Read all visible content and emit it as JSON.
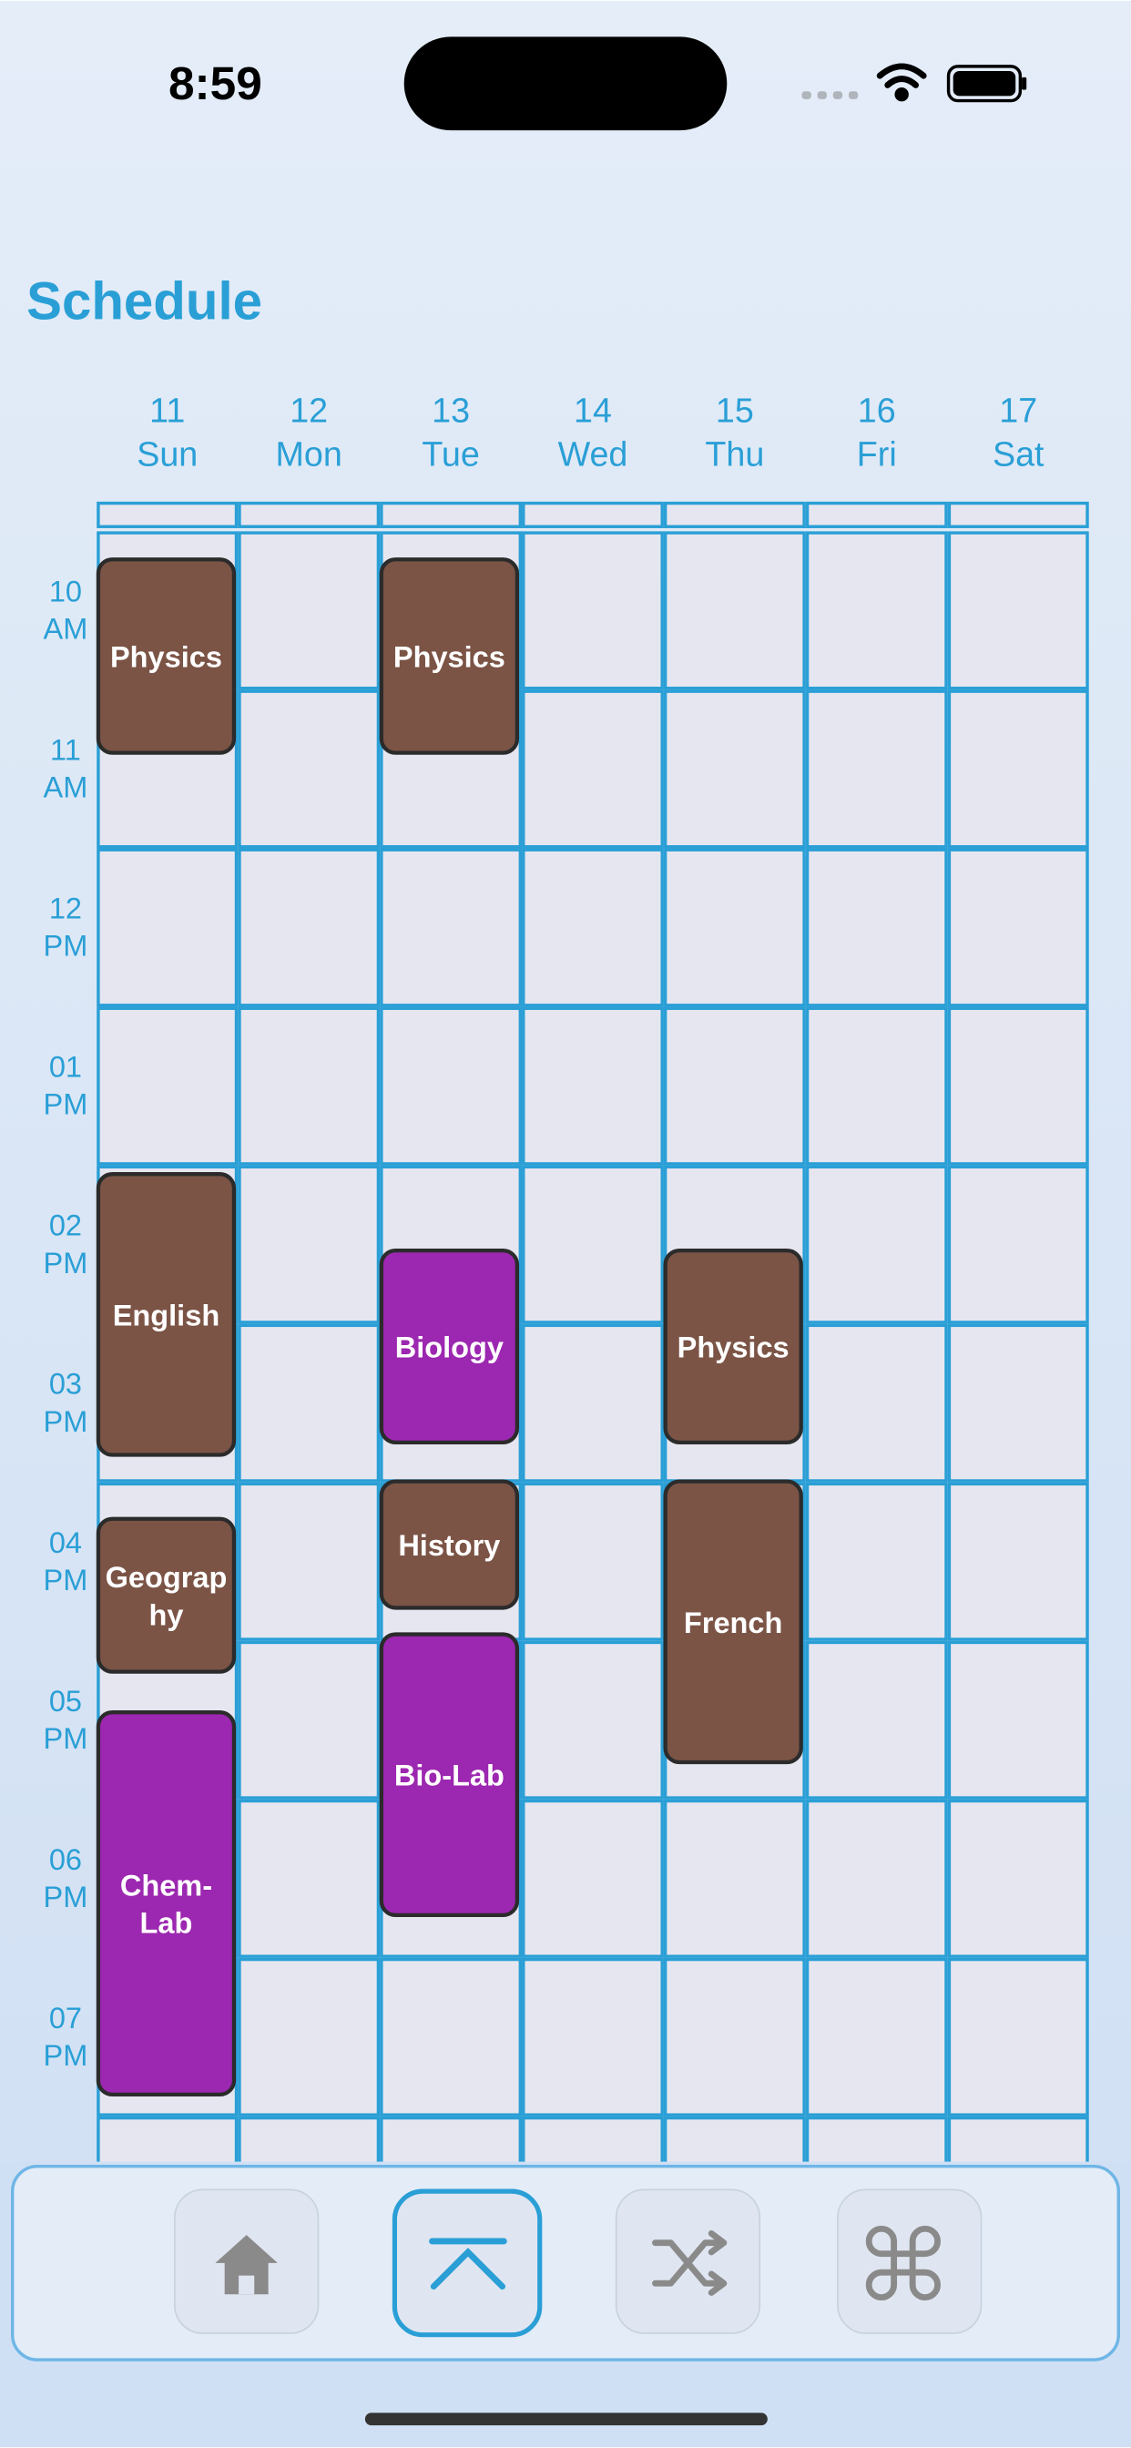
{
  "status_bar": {
    "time": "8:59"
  },
  "header": {
    "title": "Schedule"
  },
  "days": [
    {
      "date": "11",
      "name": "Sun"
    },
    {
      "date": "12",
      "name": "Mon"
    },
    {
      "date": "13",
      "name": "Tue"
    },
    {
      "date": "14",
      "name": "Wed"
    },
    {
      "date": "15",
      "name": "Thu"
    },
    {
      "date": "16",
      "name": "Fri"
    },
    {
      "date": "17",
      "name": "Sat"
    }
  ],
  "hours": [
    {
      "hour": "10",
      "period": "AM"
    },
    {
      "hour": "11",
      "period": "AM"
    },
    {
      "hour": "12",
      "period": "PM"
    },
    {
      "hour": "01",
      "period": "PM"
    },
    {
      "hour": "02",
      "period": "PM"
    },
    {
      "hour": "03",
      "period": "PM"
    },
    {
      "hour": "04",
      "period": "PM"
    },
    {
      "hour": "05",
      "period": "PM"
    },
    {
      "hour": "06",
      "period": "PM"
    },
    {
      "hour": "07",
      "period": "PM"
    }
  ],
  "events": [
    {
      "lines": [
        "Physics"
      ],
      "color": "#7b5446"
    },
    {
      "lines": [
        "Physics"
      ],
      "color": "#7b5446"
    },
    {
      "lines": [
        "English"
      ],
      "color": "#7b5446"
    },
    {
      "lines": [
        "Biology"
      ],
      "color": "#9c27b0"
    },
    {
      "lines": [
        "Physics"
      ],
      "color": "#7b5446"
    },
    {
      "lines": [
        "History"
      ],
      "color": "#7b5446"
    },
    {
      "lines": [
        "French"
      ],
      "color": "#7b5446"
    },
    {
      "lines": [
        "Geograp",
        "hy"
      ],
      "color": "#7b5446"
    },
    {
      "lines": [
        "Bio-Lab"
      ],
      "color": "#9c27b0"
    },
    {
      "lines": [
        "Chem-",
        "Lab"
      ],
      "color": "#9c27b0"
    }
  ]
}
